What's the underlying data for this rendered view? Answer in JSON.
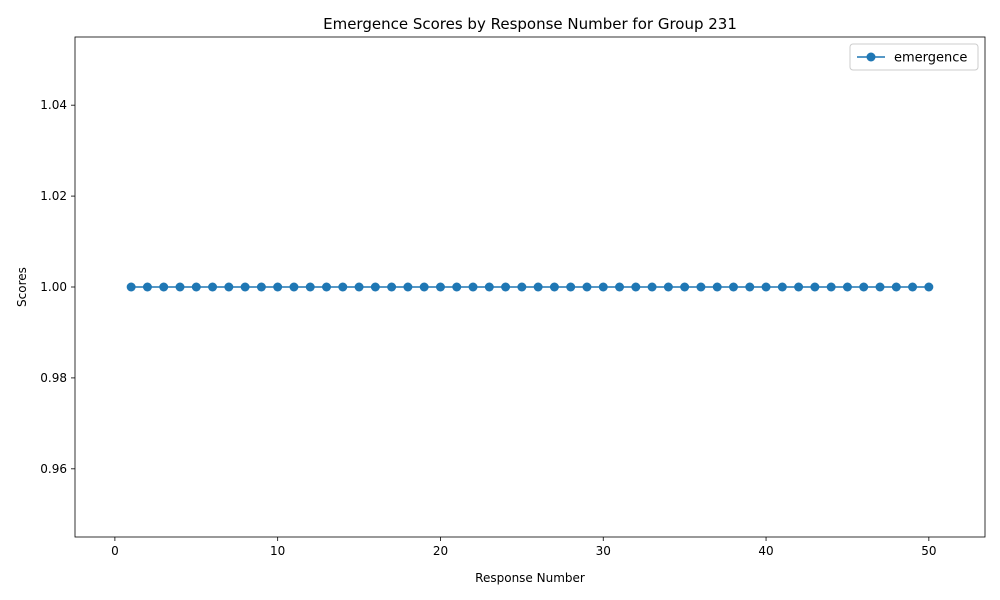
{
  "chart_data": {
    "type": "line",
    "title": "Emergence Scores by Response Number for Group 231",
    "xlabel": "Response Number",
    "ylabel": "Scores",
    "xlim": [
      -2.45,
      53.45
    ],
    "ylim": [
      0.945,
      1.055
    ],
    "xticks": [
      0,
      10,
      20,
      30,
      40,
      50
    ],
    "yticks": [
      0.96,
      0.98,
      1.0,
      1.02,
      1.04
    ],
    "ytick_labels": [
      "0.96",
      "0.98",
      "1.00",
      "1.02",
      "1.04"
    ],
    "grid": false,
    "legend_position": "top-right",
    "series": [
      {
        "name": "emergence",
        "color": "#1f77b4",
        "marker": "circle",
        "x": [
          1,
          2,
          3,
          4,
          5,
          6,
          7,
          8,
          9,
          10,
          11,
          12,
          13,
          14,
          15,
          16,
          17,
          18,
          19,
          20,
          21,
          22,
          23,
          24,
          25,
          26,
          27,
          28,
          29,
          30,
          31,
          32,
          33,
          34,
          35,
          36,
          37,
          38,
          39,
          40,
          41,
          42,
          43,
          44,
          45,
          46,
          47,
          48,
          49,
          50
        ],
        "values": [
          1,
          1,
          1,
          1,
          1,
          1,
          1,
          1,
          1,
          1,
          1,
          1,
          1,
          1,
          1,
          1,
          1,
          1,
          1,
          1,
          1,
          1,
          1,
          1,
          1,
          1,
          1,
          1,
          1,
          1,
          1,
          1,
          1,
          1,
          1,
          1,
          1,
          1,
          1,
          1,
          1,
          1,
          1,
          1,
          1,
          1,
          1,
          1,
          1,
          1
        ]
      }
    ]
  }
}
